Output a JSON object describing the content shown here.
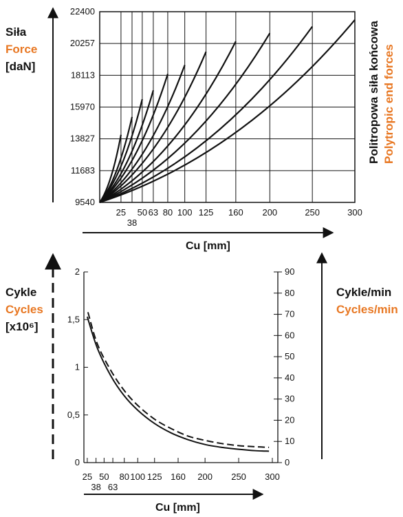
{
  "colors": {
    "ink": "#111111",
    "accent": "#e87722"
  },
  "chart_data": [
    {
      "type": "line",
      "ylabel": {
        "pl": "Siła",
        "en": "Force",
        "unit": "[daN]"
      },
      "xlabel": "Cu [mm]",
      "right_label": {
        "pl": "Politropowa siła końcowa",
        "en": "Polytropic end forces"
      },
      "yticks": [
        9540,
        11683,
        13827,
        15970,
        18113,
        20257,
        22400
      ],
      "xticks": [
        25,
        38,
        50,
        63,
        80,
        100,
        125,
        160,
        200,
        250,
        300
      ],
      "ylim": [
        9540,
        22400
      ],
      "grid": true,
      "series": [
        {
          "values": [
            [
              0,
              9540
            ],
            [
              25,
              14100
            ]
          ]
        },
        {
          "values": [
            [
              0,
              9540
            ],
            [
              38,
              15300
            ]
          ]
        },
        {
          "values": [
            [
              0,
              9540
            ],
            [
              50,
              16500
            ]
          ]
        },
        {
          "values": [
            [
              0,
              9540
            ],
            [
              63,
              17100
            ]
          ]
        },
        {
          "values": [
            [
              0,
              9540
            ],
            [
              80,
              18200
            ]
          ]
        },
        {
          "values": [
            [
              0,
              9540
            ],
            [
              100,
              18800
            ]
          ]
        },
        {
          "values": [
            [
              0,
              9540
            ],
            [
              125,
              19700
            ]
          ]
        },
        {
          "values": [
            [
              0,
              9540
            ],
            [
              160,
              20400
            ]
          ]
        },
        {
          "values": [
            [
              0,
              9540
            ],
            [
              200,
              20950
            ]
          ]
        },
        {
          "values": [
            [
              0,
              9540
            ],
            [
              250,
              21400
            ]
          ]
        },
        {
          "values": [
            [
              0,
              9540
            ],
            [
              300,
              21850
            ]
          ]
        }
      ]
    },
    {
      "type": "line",
      "ylabel_left": {
        "pl": "Cykle",
        "en": "Cycles",
        "unit": "[x10⁶]"
      },
      "ylabel_right": {
        "pl": "Cykle/min",
        "en": "Cycles/min"
      },
      "xlabel": "Cu [mm]",
      "left_ticks": [
        "0",
        "0,5",
        "1",
        "1,5",
        "2"
      ],
      "left_tick_values": [
        0,
        0.5,
        1,
        1.5,
        2
      ],
      "right_ticks": [
        0,
        10,
        20,
        30,
        40,
        50,
        60,
        70,
        80,
        90
      ],
      "xticks": [
        25,
        38,
        50,
        63,
        80,
        100,
        125,
        160,
        200,
        250,
        300
      ],
      "xticks_row1": [
        "25",
        "50",
        "80",
        "100",
        "125",
        "160",
        "200",
        "250",
        "300"
      ],
      "xticks_row2": [
        "38",
        "63"
      ],
      "ylim_left": [
        0,
        2
      ],
      "ylim_right": [
        0,
        90
      ],
      "series": [
        {
          "style": "solid",
          "axis": "left",
          "x": [
            25,
            40,
            60,
            80,
            100,
            125,
            150,
            175,
            200,
            225,
            250,
            275,
            295
          ],
          "y": [
            1.53,
            1.2,
            0.91,
            0.7,
            0.55,
            0.41,
            0.31,
            0.24,
            0.19,
            0.16,
            0.14,
            0.125,
            0.12
          ]
        },
        {
          "style": "dashed",
          "axis": "right",
          "x": [
            26,
            40,
            60,
            80,
            100,
            125,
            150,
            175,
            200,
            225,
            250,
            275,
            295
          ],
          "y": [
            71,
            56,
            43.5,
            34,
            27,
            20.5,
            16,
            12.5,
            10.5,
            9,
            8,
            7.5,
            7.2
          ]
        }
      ]
    }
  ]
}
